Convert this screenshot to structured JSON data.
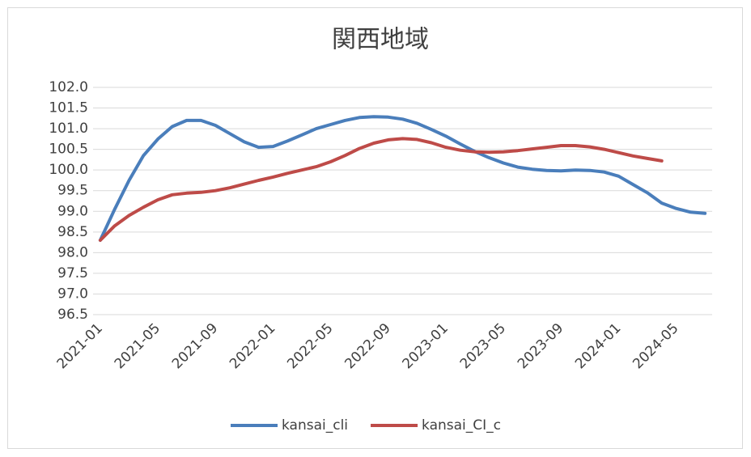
{
  "chart_data": {
    "type": "line",
    "title": "関西地域",
    "categories": [
      "2021-01",
      null,
      null,
      null,
      "2021-05",
      null,
      null,
      null,
      "2021-09",
      null,
      null,
      null,
      "2022-01",
      null,
      null,
      null,
      "2022-05",
      null,
      null,
      null,
      "2022-09",
      null,
      null,
      null,
      "2023-01",
      null,
      null,
      null,
      "2023-05",
      null,
      null,
      null,
      "2023-09",
      null,
      null,
      null,
      "2024-01",
      null,
      null,
      null,
      "2024-05",
      null,
      null
    ],
    "series": [
      {
        "name": "kansai_cli",
        "color": "#4a7ebb",
        "values": [
          98.3,
          99.05,
          99.75,
          100.35,
          100.75,
          101.05,
          101.2,
          101.2,
          101.08,
          100.88,
          100.68,
          100.55,
          100.57,
          100.7,
          100.85,
          101.0,
          101.1,
          101.2,
          101.27,
          101.29,
          101.28,
          101.23,
          101.13,
          100.98,
          100.82,
          100.63,
          100.45,
          100.3,
          100.17,
          100.07,
          100.02,
          99.99,
          99.98,
          100.0,
          99.99,
          99.95,
          99.85,
          99.65,
          99.45,
          99.2,
          99.07,
          98.98,
          98.95
        ]
      },
      {
        "name": "kansai_CI_c",
        "color": "#be4b48",
        "values": [
          98.3,
          98.65,
          98.9,
          99.1,
          99.28,
          99.4,
          99.44,
          99.46,
          99.5,
          99.57,
          99.66,
          99.75,
          99.83,
          99.92,
          100.0,
          100.08,
          100.2,
          100.35,
          100.52,
          100.65,
          100.73,
          100.76,
          100.74,
          100.66,
          100.55,
          100.48,
          100.44,
          100.43,
          100.44,
          100.47,
          100.51,
          100.55,
          100.59,
          100.59,
          100.56,
          100.5,
          100.42,
          100.34,
          100.28,
          100.22,
          null,
          null,
          null
        ]
      }
    ],
    "ylim": [
      96.5,
      102.0
    ],
    "yticks": [
      96.5,
      {
        "value": 97,
        "label": "97.0"
      },
      97.5,
      {
        "value": 98,
        "label": "98.0"
      },
      98.5,
      {
        "value": 99,
        "label": "99.0"
      },
      99.5,
      {
        "value": 100,
        "label": "100.0"
      },
      100.5,
      {
        "value": 101,
        "label": "101.0"
      },
      101.5,
      {
        "value": 102,
        "label": "102.0"
      }
    ],
    "grid": true,
    "legend": "bottom"
  }
}
